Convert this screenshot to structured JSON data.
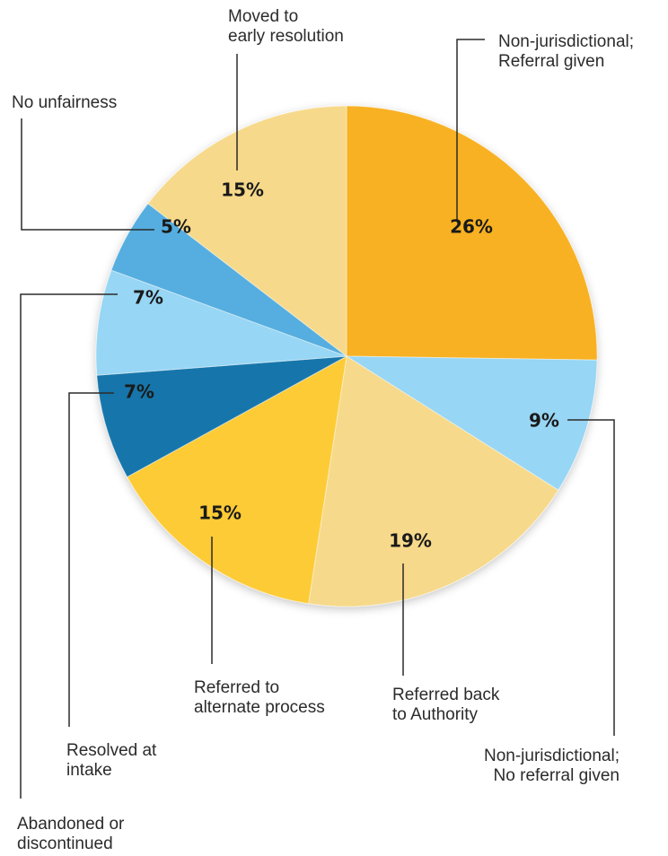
{
  "chart_data": {
    "type": "pie",
    "title": "",
    "slices": [
      {
        "label_lines": [
          "Non-jurisdictional;",
          "Referral given"
        ],
        "value": 26,
        "value_label": "26%",
        "color": "#F8B124"
      },
      {
        "label_lines": [
          "Non-jurisdictional;",
          "No referral given"
        ],
        "value": 9,
        "value_label": "9%",
        "color": "#97D6F4"
      },
      {
        "label_lines": [
          "Referred back",
          "to Authority"
        ],
        "value": 19,
        "value_label": "19%",
        "color": "#F6D98A"
      },
      {
        "label_lines": [
          "Referred to",
          "alternate process"
        ],
        "value": 15,
        "value_label": "15%",
        "color": "#FDCB36"
      },
      {
        "label_lines": [
          "Resolved at",
          "intake"
        ],
        "value": 7,
        "value_label": "7%",
        "color": "#1776AB"
      },
      {
        "label_lines": [
          "Abandoned or",
          "discontinued"
        ],
        "value": 7,
        "value_label": "7%",
        "color": "#97D6F4"
      },
      {
        "label_lines": [
          "No unfairness"
        ],
        "value": 5,
        "value_label": "5%",
        "color": "#55AEDF"
      },
      {
        "label_lines": [
          "Moved to",
          "early resolution"
        ],
        "value": 15,
        "value_label": "15%",
        "color": "#F6D98A"
      }
    ],
    "start_angle": "12 o'clock",
    "direction": "clockwise",
    "legend": "none (callout labels with leader lines)"
  }
}
